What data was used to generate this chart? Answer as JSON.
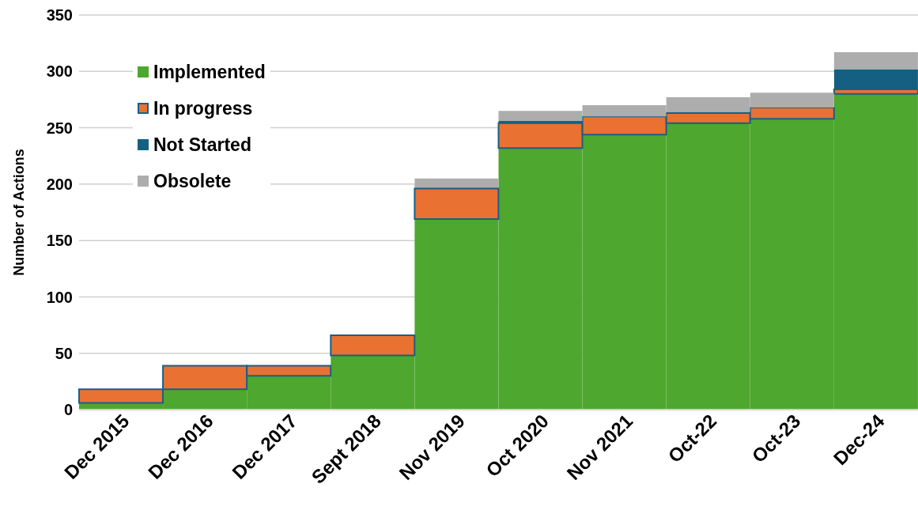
{
  "chart_data": {
    "type": "bar",
    "stacked": true,
    "ylabel": "Number of Actions",
    "categories": [
      "Dec 2015",
      "Dec 2016",
      "Dec 2017",
      "Sept 2018",
      "Nov 2019",
      "Oct 2020",
      "Nov 2021",
      "Oct-22",
      "Oct-23",
      "Dec-24"
    ],
    "series": [
      {
        "name": "Implemented",
        "color": "#4ea72e",
        "values": [
          6,
          18,
          30,
          48,
          169,
          232,
          244,
          254,
          258,
          280
        ]
      },
      {
        "name": "In progress",
        "color": "#e97132",
        "values": [
          12,
          21,
          9,
          18,
          27,
          22,
          16,
          9,
          10,
          4
        ]
      },
      {
        "name": "Not Started",
        "color": "#156082",
        "values": [
          0,
          0,
          0,
          0,
          1,
          2,
          0,
          1,
          0,
          18
        ]
      },
      {
        "name": "Obsolete",
        "color": "#adadad",
        "values": [
          0,
          0,
          0,
          0,
          8,
          9,
          10,
          13,
          13,
          15
        ]
      }
    ],
    "ylim": [
      0,
      350
    ],
    "yticks": [
      0,
      50,
      100,
      150,
      200,
      250,
      300,
      350
    ],
    "grid": "y",
    "legend": "top left"
  }
}
